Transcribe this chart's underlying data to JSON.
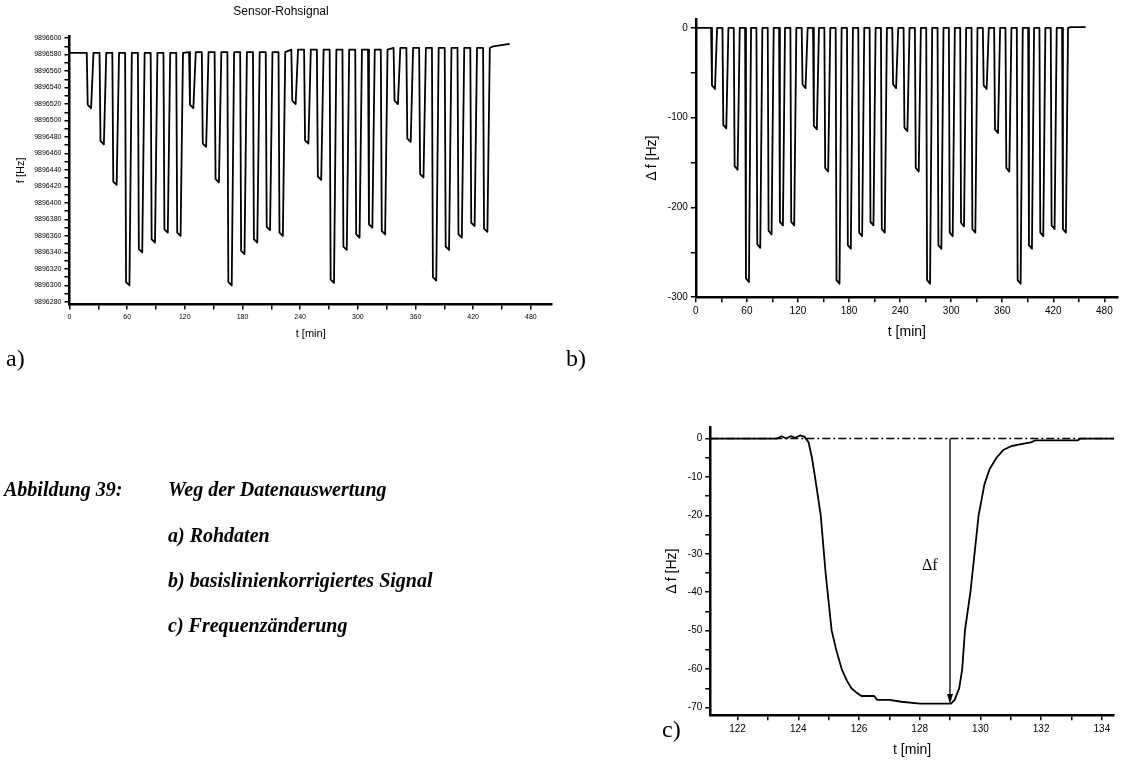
{
  "chart_data": [
    {
      "type": "line",
      "title": "Sensor-Rohsignal",
      "xlabel": "t [min]",
      "ylabel": "f [Hz]",
      "annotations": [
        "a)"
      ],
      "color": "#000000",
      "x": [
        0,
        18,
        19,
        22.5,
        25,
        31.3,
        32.3,
        35.8,
        38.3,
        44.6,
        45.6,
        49.1,
        51.6,
        57.9,
        58.9,
        62.4,
        64.9,
        71.2,
        72.2,
        75.7,
        78.2,
        84.5,
        85.5,
        89,
        91.5,
        97.8,
        98.8,
        102.3,
        104.8,
        111.1,
        112.1,
        115.6,
        118.1,
        124.4,
        125.4,
        128.9,
        131.4,
        137.7,
        138.7,
        142.2,
        144.7,
        151,
        152,
        155.5,
        158,
        164.3,
        165.3,
        168.8,
        171.3,
        177.6,
        178.6,
        182.1,
        184.6,
        190.9,
        191.9,
        195.4,
        197.9,
        204.2,
        205.2,
        208.7,
        211.2,
        217.5,
        218.5,
        222,
        224.5,
        230.8,
        231.8,
        235.3,
        237.8,
        244.1,
        245.1,
        248.6,
        251.1,
        257.4,
        258.4,
        261.9,
        264.4,
        270.7,
        271.7,
        275.2,
        277.7,
        284,
        285,
        288.5,
        291,
        297.3,
        298.3,
        301.8,
        304.3,
        310.6,
        311.6,
        315.1,
        317.6,
        323.9,
        324.9,
        328.4,
        330.9,
        337.2,
        338.2,
        341.7,
        344.2,
        350.5,
        351.5,
        355,
        357.5,
        363.8,
        364.8,
        368.3,
        370.8,
        377.1,
        378.1,
        381.6,
        384.1,
        390.4,
        391.4,
        394.9,
        397.4,
        403.7,
        404.7,
        408.2,
        410.7,
        417,
        418,
        421.5,
        424,
        430.3,
        431.3,
        434.8,
        437.3,
        441,
        458
      ],
      "values": [
        9896582,
        9896582,
        9896519,
        9896515,
        9896582,
        9896582,
        9896475,
        9896471,
        9896582,
        9896582,
        9896426,
        9896422,
        9896582,
        9896582,
        9896304,
        9896300,
        9896582,
        9896582,
        9896344,
        9896340,
        9896582,
        9896582,
        9896356,
        9896352,
        9896582,
        9896582,
        9896368,
        9896364,
        9896582,
        9896582,
        9896364,
        9896360,
        9896582,
        9896583,
        9896519,
        9896515,
        9896583,
        9896583,
        9896472,
        9896468,
        9896583,
        9896583,
        9896429,
        9896425,
        9896583,
        9896583,
        9896304,
        9896300,
        9896583,
        9896583,
        9896342,
        9896338,
        9896583,
        9896583,
        9896356,
        9896352,
        9896583,
        9896583,
        9896371,
        9896367,
        9896583,
        9896583,
        9896364,
        9896360,
        9896583,
        9896586,
        9896524,
        9896520,
        9896586,
        9896586,
        9896476,
        9896472,
        9896586,
        9896586,
        9896432,
        9896428,
        9896586,
        9896586,
        9896307,
        9896303,
        9896586,
        9896586,
        9896347,
        9896343,
        9896586,
        9896586,
        9896362,
        9896358,
        9896586,
        9896586,
        9896374,
        9896370,
        9896586,
        9896586,
        9896366,
        9896362,
        9896586,
        9896588,
        9896524,
        9896520,
        9896588,
        9896588,
        9896478,
        9896474,
        9896588,
        9896588,
        9896435,
        9896431,
        9896588,
        9896588,
        9896310,
        9896306,
        9896588,
        9896588,
        9896347,
        9896343,
        9896588,
        9896588,
        9896362,
        9896358,
        9896588,
        9896588,
        9896376,
        9896372,
        9896588,
        9896588,
        9896369,
        9896365,
        9896588,
        9896590,
        9896593
      ],
      "xlim": [
        0,
        502
      ],
      "xticks": [
        0,
        {
          "value": 30,
          "label": null
        },
        60,
        {
          "value": 90,
          "label": null
        },
        120,
        {
          "value": 150,
          "label": null
        },
        180,
        {
          "value": 210,
          "label": null
        },
        240,
        {
          "value": 270,
          "label": null
        },
        300,
        {
          "value": 330,
          "label": null
        },
        360,
        {
          "value": 390,
          "label": null
        },
        420,
        {
          "value": 450,
          "label": null
        },
        480
      ],
      "ylim": [
        9896277,
        9896602
      ],
      "yticks": [
        9896280,
        {
          "value": 9896290,
          "label": null
        },
        9896300,
        {
          "value": 9896310,
          "label": null
        },
        9896320,
        {
          "value": 9896330,
          "label": null
        },
        9896340,
        {
          "value": 9896350,
          "label": null
        },
        9896360,
        {
          "value": 9896370,
          "label": null
        },
        9896380,
        {
          "value": 9896390,
          "label": null
        },
        9896400,
        {
          "value": 9896410,
          "label": null
        },
        9896420,
        {
          "value": 9896430,
          "label": null
        },
        9896440,
        {
          "value": 9896450,
          "label": null
        },
        9896460,
        {
          "value": 9896470,
          "label": null
        },
        9896480,
        {
          "value": 9896490,
          "label": null
        },
        9896500,
        {
          "value": 9896510,
          "label": null
        },
        9896520,
        {
          "value": 9896530,
          "label": null
        },
        9896540,
        {
          "value": 9896550,
          "label": null
        },
        9896560,
        {
          "value": 9896570,
          "label": null
        },
        9896580,
        {
          "value": 9896590,
          "label": null
        },
        9896600
      ]
    },
    {
      "type": "line",
      "xlabel": "t [min]",
      "ylabel": "Δ f [Hz]",
      "annotations": [
        "b)"
      ],
      "color": "#000000",
      "x": [
        0,
        18,
        19,
        22.5,
        25,
        31.3,
        32.3,
        35.8,
        38.3,
        44.6,
        45.6,
        49.1,
        51.6,
        57.9,
        58.9,
        62.4,
        64.9,
        71.2,
        72.2,
        75.7,
        78.2,
        84.5,
        85.5,
        89,
        91.5,
        97.8,
        98.8,
        102.3,
        104.8,
        111.1,
        112.1,
        115.6,
        118.1,
        124.4,
        125.4,
        128.9,
        131.4,
        137.7,
        138.7,
        142.2,
        144.7,
        151,
        152,
        155.5,
        158,
        164.3,
        165.3,
        168.8,
        171.3,
        177.6,
        178.6,
        182.1,
        184.6,
        190.9,
        191.9,
        195.4,
        197.9,
        204.2,
        205.2,
        208.7,
        211.2,
        217.5,
        218.5,
        222,
        224.5,
        230.8,
        231.8,
        235.3,
        237.8,
        244.1,
        245.1,
        248.6,
        251.1,
        257.4,
        258.4,
        261.9,
        264.4,
        270.7,
        271.7,
        275.2,
        277.7,
        284,
        285,
        288.5,
        291,
        297.3,
        298.3,
        301.8,
        304.3,
        310.6,
        311.6,
        315.1,
        317.6,
        323.9,
        324.9,
        328.4,
        330.9,
        337.2,
        338.2,
        341.7,
        344.2,
        350.5,
        351.5,
        355,
        357.5,
        363.8,
        364.8,
        368.3,
        370.8,
        377.1,
        378.1,
        381.6,
        384.1,
        390.4,
        391.4,
        394.9,
        397.4,
        403.7,
        404.7,
        408.2,
        410.7,
        417,
        418,
        421.5,
        424,
        430.3,
        431.3,
        434.8,
        437.3,
        441,
        458
      ],
      "values": [
        0,
        0,
        -64,
        -68,
        0,
        0,
        -108,
        -112,
        0,
        0,
        -154,
        -158,
        0,
        0,
        -279,
        -283,
        0,
        0,
        -241,
        -245,
        0,
        0,
        -226,
        -230,
        0,
        0,
        -216,
        -220,
        0,
        0,
        -216,
        -220,
        0,
        0,
        -63,
        -67,
        0,
        0,
        -109,
        -113,
        0,
        0,
        -156,
        -160,
        0,
        0,
        -281,
        -285,
        0,
        0,
        -242,
        -246,
        0,
        0,
        -228,
        -232,
        0,
        0,
        -216,
        -220,
        0,
        0,
        -224,
        -228,
        0,
        0,
        -63,
        -67,
        0,
        0,
        -111,
        -115,
        0,
        0,
        -156,
        -160,
        0,
        0,
        -281,
        -285,
        0,
        0,
        -242,
        -246,
        0,
        0,
        -228,
        -232,
        0,
        0,
        -217,
        -221,
        0,
        0,
        -224,
        -228,
        0,
        0,
        -64,
        -68,
        0,
        0,
        -113,
        -117,
        0,
        0,
        -156,
        -160,
        0,
        0,
        -281,
        -285,
        0,
        0,
        -242,
        -246,
        0,
        0,
        -228,
        -232,
        0,
        0,
        -220,
        -224,
        0,
        0,
        -224,
        -228,
        0,
        1,
        1
      ],
      "xlim": [
        0,
        496
      ],
      "xticks": [
        0,
        {
          "value": 30,
          "label": null
        },
        60,
        {
          "value": 90,
          "label": null
        },
        120,
        {
          "value": 150,
          "label": null
        },
        180,
        {
          "value": 210,
          "label": null
        },
        240,
        {
          "value": 270,
          "label": null
        },
        300,
        {
          "value": 330,
          "label": null
        },
        360,
        {
          "value": 390,
          "label": null
        },
        420,
        {
          "value": 450,
          "label": null
        },
        480
      ],
      "ylim": [
        -300,
        10
      ],
      "yticks": [
        -300,
        {
          "value": -250,
          "label": null
        },
        -200,
        {
          "value": -150,
          "label": null
        },
        -100,
        {
          "value": -50,
          "label": null
        },
        0
      ]
    },
    {
      "type": "other",
      "annotations": [
        "Abbildung 39:",
        "Weg der Datenauswertung",
        "a) Rohdaten",
        "b) basislinienkorrigiertes Signal",
        "c) Frequenzänderung"
      ]
    },
    {
      "type": "line",
      "xlabel": "t [min]",
      "ylabel": "Δ f [Hz]",
      "annotations": [
        "c)",
        "Δf"
      ],
      "color": "#000000",
      "x": [
        121.1,
        123.3,
        123.45,
        123.6,
        123.75,
        123.9,
        124.05,
        124.2,
        124.34,
        124.45,
        124.55,
        124.74,
        124.9,
        125.1,
        125.25,
        125.43,
        125.6,
        125.75,
        125.9,
        126.08,
        126.5,
        126.6,
        127,
        127.4,
        128,
        129.03,
        129.15,
        129.3,
        129.4,
        129.49,
        129.67,
        129.94,
        130.13,
        130.3,
        130.53,
        130.75,
        131.01,
        131.3,
        131.66,
        131.8,
        133.2,
        133.3,
        134.4
      ],
      "values": [
        0,
        0,
        0.6,
        0,
        0.6,
        0.2,
        0.8,
        0.5,
        -1,
        -5,
        -10,
        -20,
        -35,
        -50,
        -55,
        -60,
        -63,
        -65,
        -66,
        -67,
        -67,
        -68,
        -68,
        -68.5,
        -69,
        -69,
        -68,
        -65,
        -60,
        -50,
        -40,
        -20,
        -12,
        -8,
        -5,
        -3,
        -2,
        -1.5,
        -1,
        -0.5,
        -0.5,
        0,
        0
      ],
      "ref_lines": [
        {
          "axis": "y",
          "value": 0,
          "line_style": "dashed"
        }
      ],
      "xlim": [
        121.1,
        134.4
      ],
      "xticks": [
        122,
        {
          "value": 123,
          "label": null
        },
        124,
        {
          "value": 125,
          "label": null
        },
        126,
        {
          "value": 127,
          "label": null
        },
        128,
        {
          "value": 129,
          "label": null
        },
        130,
        {
          "value": 131,
          "label": null
        },
        132,
        {
          "value": 133,
          "label": null
        },
        134
      ],
      "ylim": [
        -72,
        3
      ],
      "yticks": [
        -70,
        {
          "value": -65,
          "label": null
        },
        -60,
        {
          "value": -55,
          "label": null
        },
        -50,
        {
          "value": -45,
          "label": null
        },
        -40,
        {
          "value": -35,
          "label": null
        },
        -30,
        {
          "value": -25,
          "label": null
        },
        -20,
        {
          "value": -15,
          "label": null
        },
        -10,
        {
          "value": -5,
          "label": null
        },
        0
      ]
    }
  ]
}
